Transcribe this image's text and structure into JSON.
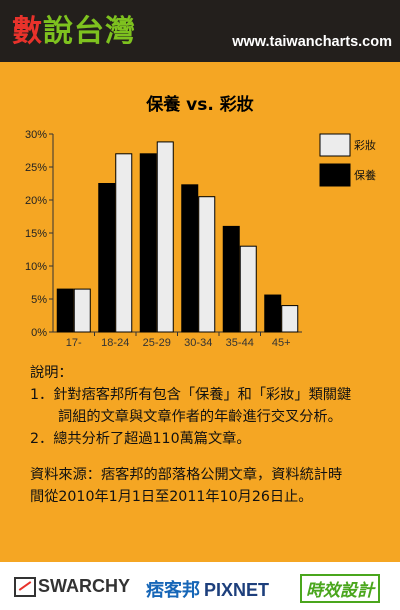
{
  "header": {
    "brand_first": "數",
    "brand_rest": "說台灣",
    "site": "www.taiwancharts.com"
  },
  "chart_data": {
    "type": "bar",
    "title": "保養 vs. 彩妝",
    "categories": [
      "17-",
      "18-24",
      "25-29",
      "30-34",
      "35-44",
      "45+"
    ],
    "series": [
      {
        "name": "保養",
        "color": "#000000",
        "values": [
          6.5,
          22.5,
          27,
          22.3,
          16,
          5.6
        ]
      },
      {
        "name": "彩妝",
        "color": "#ececec",
        "values": [
          6.5,
          27,
          28.8,
          20.5,
          13,
          4
        ]
      }
    ],
    "legend_order": [
      "彩妝",
      "保養"
    ],
    "yticks": [
      "0%",
      "5%",
      "10%",
      "15%",
      "20%",
      "25%",
      "30%"
    ],
    "ylim": [
      0,
      30
    ],
    "legend_position": "right"
  },
  "notes": {
    "heading": "說明：",
    "line1": "1．針對痞客邦所有包含「保養」和「彩妝」類關鍵",
    "line1b": "詞組的文章與文章作者的年齡進行交叉分析。",
    "line2": "2．總共分析了超過110萬篇文章。",
    "source1": "資料來源：痞客邦的部落格公開文章，資料統計時",
    "source2": "間從2010年1月1日至2011年10月26日止。"
  },
  "footer": {
    "logo1": "SWARCHY",
    "logo2a": "痞客邦",
    "logo2b": "PIXNET",
    "logo3": "時效設計"
  }
}
